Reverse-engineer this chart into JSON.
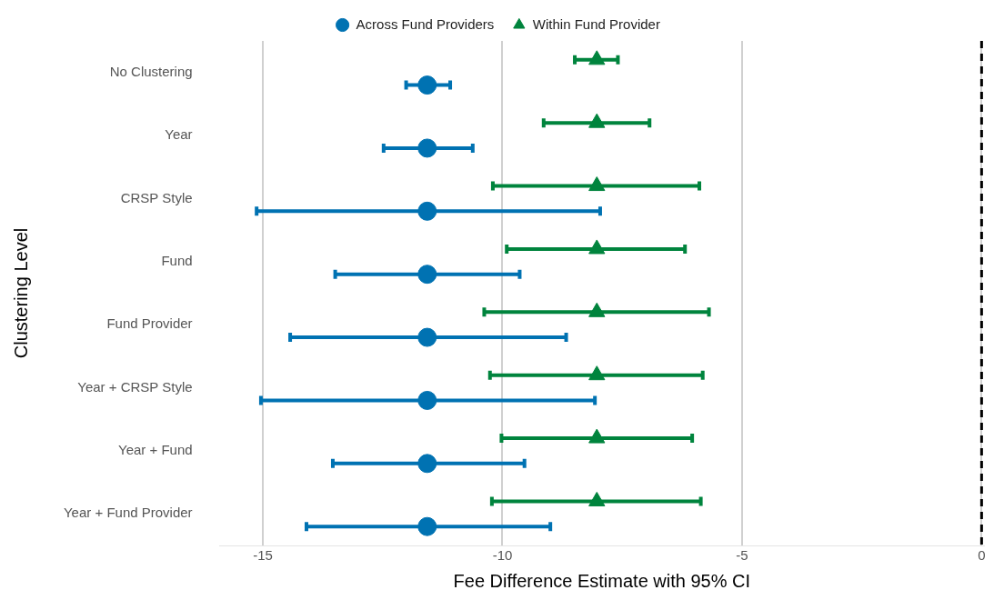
{
  "chart_data": {
    "type": "scatter",
    "orientation": "horizontal",
    "xlabel": "Fee Difference Estimate with 95% CI",
    "ylabel": "Clustering Level",
    "categories": [
      "No Clustering",
      "Year",
      "CRSP Style",
      "Fund",
      "Fund Provider",
      "Year + CRSP Style",
      "Year + Fund",
      "Year + Fund Provider"
    ],
    "series": [
      {
        "name": "Across Fund Providers",
        "color": "#0072b2",
        "marker": "circle",
        "values": [
          -11.57,
          -11.57,
          -11.57,
          -11.57,
          -11.57,
          -11.57,
          -11.57,
          -11.57
        ],
        "errors": [
          [
            -12.01,
            -11.09
          ],
          [
            -12.48,
            -10.62
          ],
          [
            -15.13,
            -7.96
          ],
          [
            -13.49,
            -9.64
          ],
          [
            -14.43,
            -8.67
          ],
          [
            -15.04,
            -8.07
          ],
          [
            -13.54,
            -9.54
          ],
          [
            -14.09,
            -9.0
          ]
        ]
      },
      {
        "name": "Within Fund Provider",
        "color": "#00843d",
        "marker": "triangle",
        "values": [
          -8.03,
          -8.03,
          -8.03,
          -8.03,
          -8.03,
          -8.03,
          -8.03,
          -8.03
        ],
        "errors": [
          [
            -8.49,
            -7.59
          ],
          [
            -9.14,
            -6.93
          ],
          [
            -10.2,
            -5.89
          ],
          [
            -9.91,
            -6.19
          ],
          [
            -10.38,
            -5.69
          ],
          [
            -10.26,
            -5.82
          ],
          [
            -10.02,
            -6.04
          ],
          [
            -10.22,
            -5.86
          ]
        ]
      }
    ],
    "xlim": [
      -15.9,
      0.05
    ],
    "xticks": [
      -15,
      -10,
      -5,
      0
    ],
    "grid": "x",
    "legend": "top",
    "ref_lines": [
      {
        "axis": "x",
        "value": 0,
        "color": "#000000",
        "line_style": "dashed"
      }
    ]
  }
}
